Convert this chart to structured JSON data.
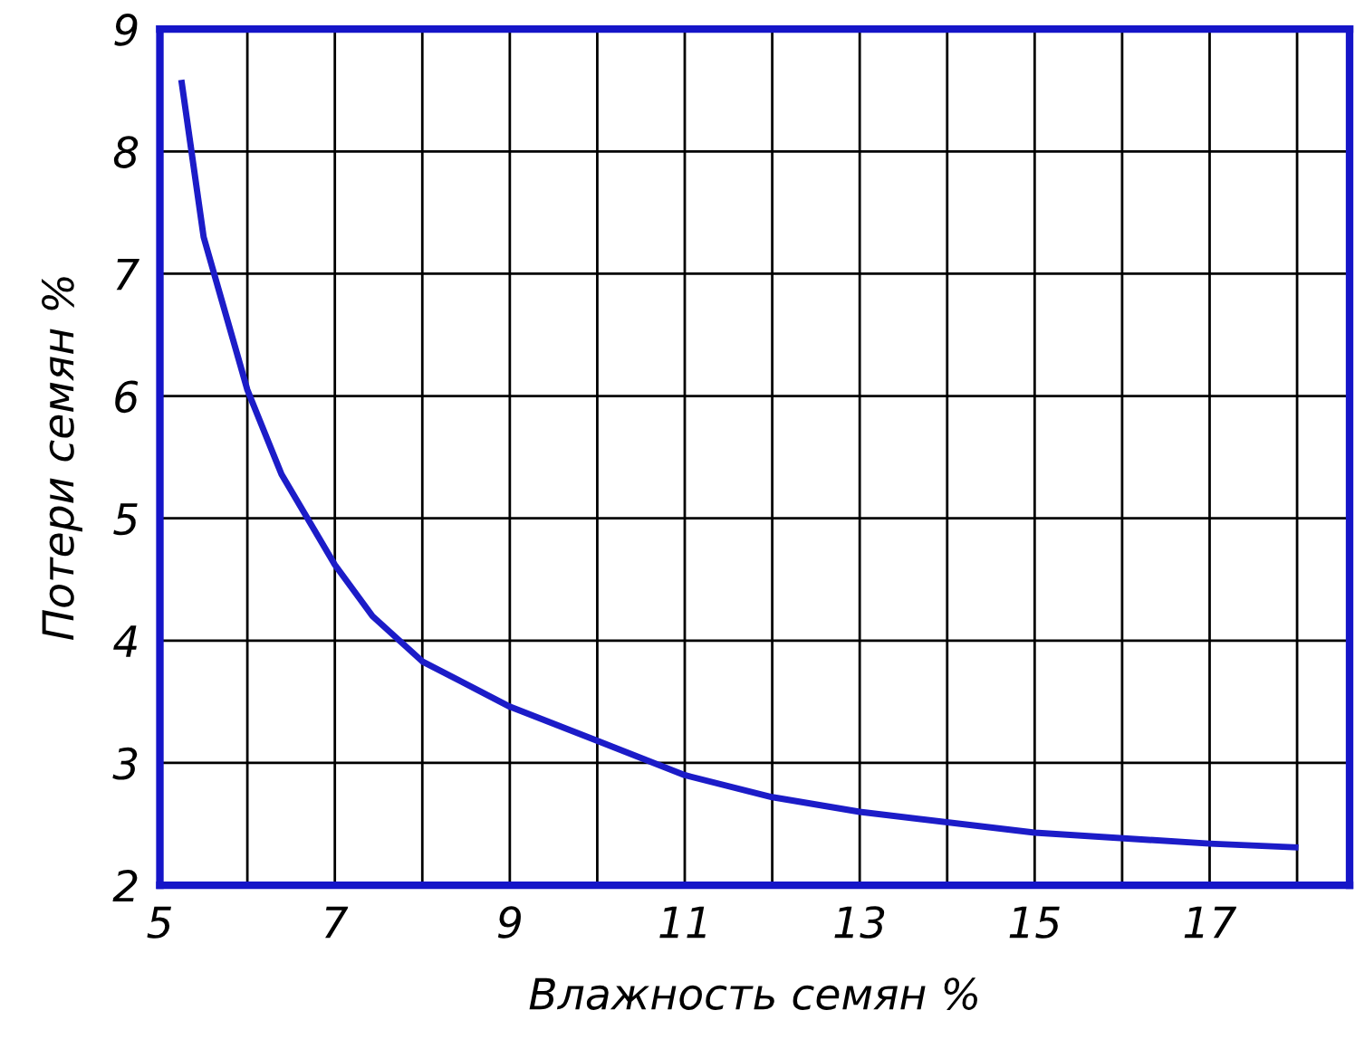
{
  "chart_data": {
    "type": "line",
    "xlabel": "Влажность семян %",
    "ylabel": "Потери семян %",
    "series": [
      {
        "color": "#1c1cc8",
        "x": [
          5.25,
          5.5,
          5.7,
          6.0,
          6.39,
          7.0,
          7.43,
          8.0,
          9.0,
          10.04,
          11.0,
          12.0,
          13.0,
          15.0,
          17.0,
          17.98
        ],
        "values": [
          8.56,
          7.3,
          6.8,
          6.05,
          5.36,
          4.62,
          4.2,
          3.83,
          3.46,
          3.17,
          2.9,
          2.72,
          2.6,
          2.43,
          2.34,
          2.31
        ]
      }
    ],
    "xlim": [
      5,
      18.6
    ],
    "ylim": [
      2,
      9
    ],
    "xticks": [
      5,
      {
        "value": 6,
        "label": null
      },
      7,
      {
        "value": 8,
        "label": null
      },
      9,
      {
        "value": 10,
        "label": null
      },
      11,
      {
        "value": 12,
        "label": null
      },
      13,
      {
        "value": 14,
        "label": null
      },
      15,
      {
        "value": 16,
        "label": null
      },
      17,
      {
        "value": 18,
        "label": null
      }
    ],
    "yticks": [
      2,
      3,
      4,
      5,
      6,
      7,
      8,
      9
    ],
    "grid": true,
    "marker": "none",
    "line_style": "solid"
  }
}
